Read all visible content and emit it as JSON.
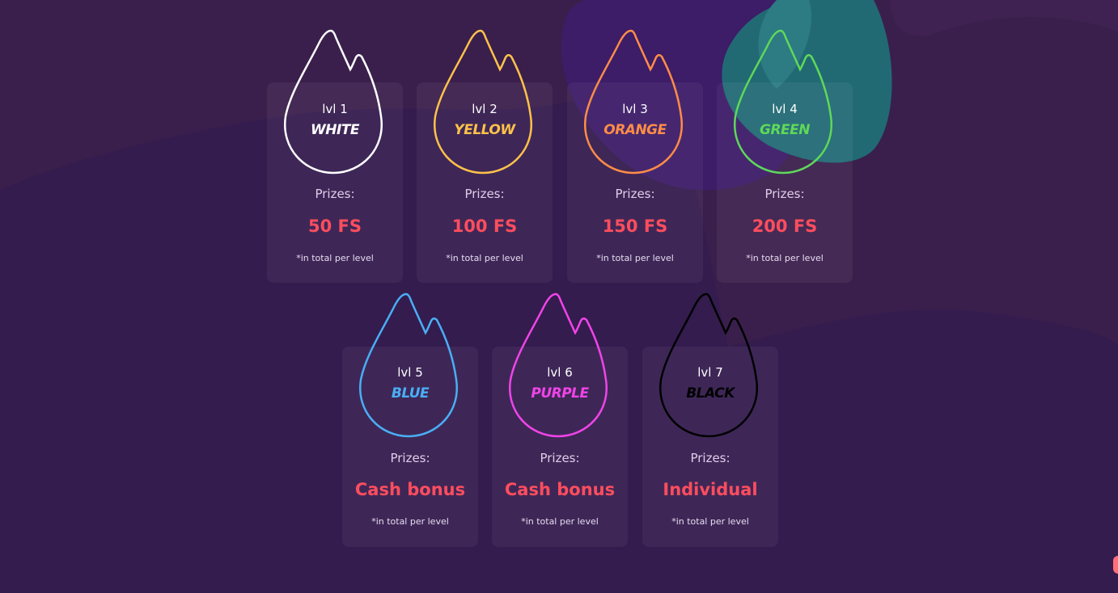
{
  "colors": {
    "background": "#3a1f4c",
    "card": "#4a2a62",
    "prize": "#ff4d5e",
    "prizes_label": "#e0cde8",
    "note": "#e8dcf0"
  },
  "levels": [
    {
      "lvl": "lvl 1",
      "name": "WHITE",
      "color": "#ffffff",
      "prizes_label": "Prizes:",
      "prize": "50 FS",
      "note": "*in total per level",
      "icon": "flame-icon"
    },
    {
      "lvl": "lvl 2",
      "name": "YELLOW",
      "color": "#ffc24a",
      "prizes_label": "Prizes:",
      "prize": "100 FS",
      "note": "*in total per level",
      "icon": "flame-icon"
    },
    {
      "lvl": "lvl 3",
      "name": "ORANGE",
      "color": "#ff8c48",
      "prizes_label": "Prizes:",
      "prize": "150 FS",
      "note": "*in total per level",
      "icon": "flame-icon"
    },
    {
      "lvl": "lvl 4",
      "name": "GREEN",
      "color": "#5fd85a",
      "prizes_label": "Prizes:",
      "prize": "200 FS",
      "note": "*in total per level",
      "icon": "flame-icon"
    },
    {
      "lvl": "lvl 5",
      "name": "BLUE",
      "color": "#4aaef5",
      "prizes_label": "Prizes:",
      "prize": "Cash bonus",
      "note": "*in total per level",
      "icon": "flame-icon"
    },
    {
      "lvl": "lvl 6",
      "name": "PURPLE",
      "color": "#f044e8",
      "prizes_label": "Prizes:",
      "prize": "Cash bonus",
      "note": "*in total per level",
      "icon": "flame-icon"
    },
    {
      "lvl": "lvl 7",
      "name": "BLACK",
      "color": "#000000",
      "prizes_label": "Prizes:",
      "prize": "Individual",
      "note": "*in total per level",
      "icon": "flame-icon"
    }
  ]
}
